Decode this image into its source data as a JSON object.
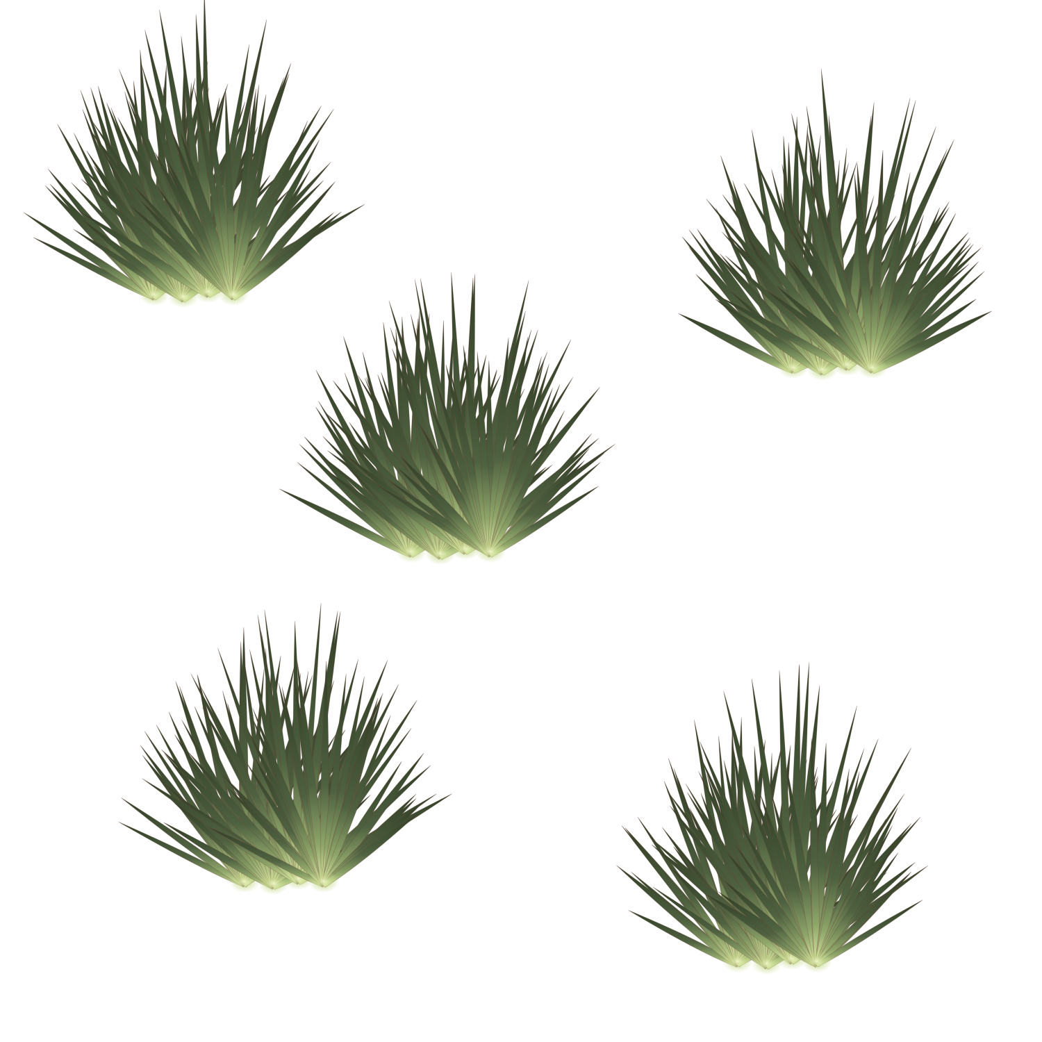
{
  "scene": {
    "background_color": "#ffffff",
    "sprite_name": "grass-tuft",
    "tuft_count": 5,
    "palette": {
      "blade_dark": "#34452a",
      "blade_mid": "#4b5e3a",
      "blade_edge": "#6b3e36",
      "base_glow": "#e6f4b0",
      "base_mid": "#a8c27a"
    }
  }
}
